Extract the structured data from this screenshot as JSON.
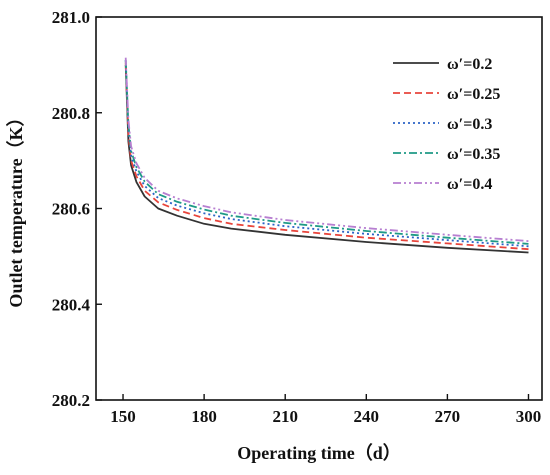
{
  "chart_data": {
    "type": "line",
    "title": "",
    "xlabel": "Operating time（d）",
    "ylabel": "Outlet temperature（K）",
    "xlim": [
      140,
      305
    ],
    "ylim": [
      280.2,
      281.0
    ],
    "xticks": [
      150,
      180,
      210,
      240,
      270,
      300
    ],
    "xtick_labels": [
      "150",
      "180",
      "210",
      "240",
      "270",
      "300"
    ],
    "yticks": [
      280.2,
      280.4,
      280.6,
      280.8,
      281.0
    ],
    "ytick_labels": [
      "280.2",
      "280.4",
      "280.6",
      "280.8",
      "281.0"
    ],
    "grid": false,
    "legend_position": "top-right",
    "x": [
      151,
      152,
      153,
      155,
      158,
      163,
      170,
      180,
      190,
      210,
      240,
      270,
      300
    ],
    "series": [
      {
        "name": "ω′=0.2",
        "color": "#333333",
        "dash": "solid",
        "values": [
          280.9,
          280.74,
          280.69,
          280.655,
          280.625,
          280.6,
          280.585,
          280.568,
          280.558,
          280.545,
          280.53,
          280.518,
          280.508
        ]
      },
      {
        "name": "ω′=0.25",
        "color": "#e8453c",
        "dash": "dash",
        "values": [
          280.905,
          280.755,
          280.7,
          280.667,
          280.637,
          280.613,
          280.597,
          280.58,
          280.568,
          280.555,
          280.539,
          280.527,
          280.515
        ]
      },
      {
        "name": "ω′=0.3",
        "color": "#2b63c6",
        "dash": "dot",
        "values": [
          280.91,
          280.765,
          280.71,
          280.677,
          280.647,
          280.622,
          280.606,
          280.59,
          280.578,
          280.563,
          280.547,
          280.534,
          280.521
        ]
      },
      {
        "name": "ω′=0.35",
        "color": "#1e9a86",
        "dash": "dashdot",
        "values": [
          280.91,
          280.775,
          280.72,
          280.686,
          280.656,
          280.63,
          280.614,
          280.598,
          280.585,
          280.57,
          280.553,
          280.539,
          280.526
        ]
      },
      {
        "name": "ω′=0.4",
        "color": "#b77fd1",
        "dash": "dashdotdot",
        "values": [
          280.915,
          280.785,
          280.73,
          280.694,
          280.664,
          280.637,
          280.621,
          280.605,
          280.592,
          280.576,
          280.559,
          280.545,
          280.532
        ]
      }
    ]
  }
}
